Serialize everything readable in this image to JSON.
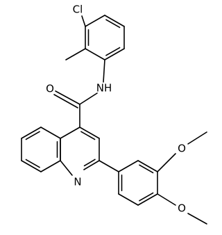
{
  "atoms": {
    "chlorine": "Cl",
    "carbonyl_oxygen": "O",
    "amide_nitrogen": "NH",
    "quinoline_nitrogen": "N",
    "methoxy_oxygen_top": "O",
    "methoxy_oxygen_bottom": "O"
  }
}
